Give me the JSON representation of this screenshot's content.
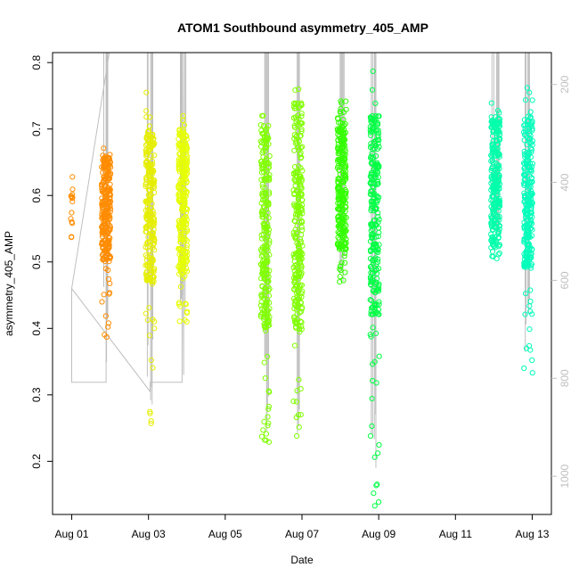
{
  "chart_data": {
    "type": "scatter",
    "title": "ATOM1 Southbound asymmetry_405_AMP",
    "xlabel": "Date",
    "ylabel": "asymmetry_405_AMP",
    "xlim": [
      "2023-07-31T12:00",
      "2023-08-13T12:00"
    ],
    "ylim": [
      0.12,
      0.815
    ],
    "y_ticks": [
      0.2,
      0.3,
      0.4,
      0.5,
      0.6,
      0.7,
      0.8
    ],
    "y_tick_labels": [
      "0.2",
      "0.3",
      "0.4",
      "0.5",
      "0.6",
      "0.7",
      "0.8"
    ],
    "x_ticks": [
      "2023-08-01",
      "2023-08-03",
      "2023-08-05",
      "2023-08-07",
      "2023-08-09",
      "2023-08-11",
      "2023-08-13"
    ],
    "x_tick_labels": [
      "Aug 01",
      "Aug 03",
      "Aug 05",
      "Aug 07",
      "Aug 09",
      "Aug 11",
      "Aug 13"
    ],
    "y2_ticks": [
      200,
      400,
      600,
      800,
      1000
    ],
    "y2_tick_labels": [
      "200",
      "400",
      "600",
      "800",
      "1000"
    ],
    "y2_range": [
      1078,
      135
    ],
    "y2_color": "#bfbfbf",
    "grid": false,
    "marker": "open-circle",
    "clusters": [
      {
        "day": "2023-08-01T00:00",
        "color": "#ff8c00",
        "y_min": 0.537,
        "y_max": 0.628,
        "density": "sparse"
      },
      {
        "day": "2023-08-01T21:30",
        "color": "#ff8c00",
        "y_min": 0.387,
        "y_max": 0.671,
        "y_core_low": 0.5,
        "y_core_high": 0.66,
        "density": "dense"
      },
      {
        "day": "2023-08-03T01:00",
        "color": "#e6ee00",
        "y_min": 0.257,
        "y_max": 0.755,
        "y_core_low": 0.47,
        "y_core_high": 0.7,
        "density": "dense"
      },
      {
        "day": "2023-08-03T21:30",
        "color": "#e6ff00",
        "y_min": 0.41,
        "y_max": 0.72,
        "y_core_low": 0.48,
        "y_core_high": 0.7,
        "density": "dense"
      },
      {
        "day": "2023-08-06T01:00",
        "color": "#80ff00",
        "y_min": 0.229,
        "y_max": 0.72,
        "y_core_low": 0.4,
        "y_core_high": 0.7,
        "density": "dense"
      },
      {
        "day": "2023-08-06T21:30",
        "color": "#80ff00",
        "y_min": 0.238,
        "y_max": 0.76,
        "y_core_low": 0.4,
        "y_core_high": 0.74,
        "density": "dense"
      },
      {
        "day": "2023-08-08T01:00",
        "color": "#33ff00",
        "y_min": 0.47,
        "y_max": 0.742,
        "y_core_low": 0.52,
        "y_core_high": 0.71,
        "density": "dense"
      },
      {
        "day": "2023-08-08T21:30",
        "color": "#00ff44",
        "y_min": 0.133,
        "y_max": 0.787,
        "y_core_low": 0.42,
        "y_core_high": 0.72,
        "density": "dense"
      },
      {
        "day": "2023-08-12T01:00",
        "color": "#00ffaa",
        "y_min": 0.505,
        "y_max": 0.739,
        "y_core_low": 0.52,
        "y_core_high": 0.72,
        "density": "dense"
      },
      {
        "day": "2023-08-12T21:30",
        "color": "#00ffbb",
        "y_min": 0.333,
        "y_max": 0.762,
        "y_core_low": 0.49,
        "y_core_high": 0.72,
        "density": "dense"
      }
    ],
    "secondary_line": {
      "color": "#bfbfbf",
      "points": [
        [
          "2023-08-01T00:00",
          0.46
        ],
        [
          "2023-08-01T00:00",
          0.319
        ],
        [
          "2023-08-01T21:30",
          0.319
        ],
        [
          "2023-08-01T21:30",
          0.38
        ],
        [
          "2023-08-01T21:30",
          0.815
        ],
        [
          "2023-08-01T21:30",
          0.35
        ],
        [
          "2023-08-01T21:45",
          0.35
        ],
        [
          "2023-08-01T21:45",
          0.815
        ],
        [
          "2023-08-01T22:00",
          0.6
        ],
        [
          "2023-08-01T22:00",
          0.815
        ],
        [
          "2023-08-01T23:30",
          0.815
        ],
        [
          "2023-08-01T00:00",
          0.46
        ],
        [
          "2023-08-03T01:00",
          0.305
        ],
        [
          "2023-08-03T01:00",
          0.319
        ],
        [
          "2023-08-03T21:00",
          0.319
        ],
        [
          "2023-08-03T21:00",
          0.815
        ],
        [
          "2023-08-03T22:00",
          0.33
        ],
        [
          "2023-08-03T22:00",
          0.815
        ],
        [
          "2023-08-04T05:00",
          0.815
        ]
      ]
    }
  }
}
